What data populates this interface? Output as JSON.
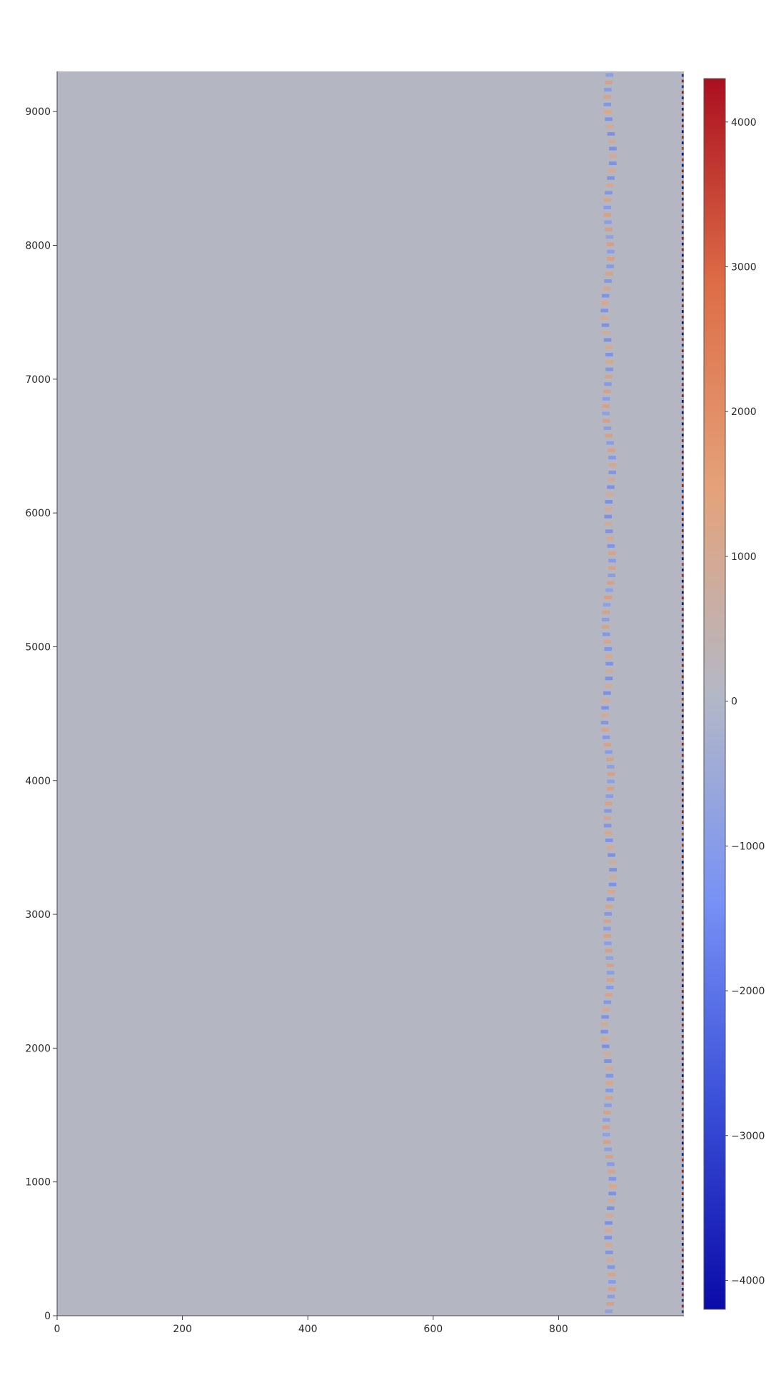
{
  "chart_data": {
    "type": "heatmap",
    "title": "",
    "xlabel": "",
    "ylabel": "",
    "xlim": [
      0,
      1000
    ],
    "ylim": [
      0,
      9300
    ],
    "x_ticks": [
      0,
      200,
      400,
      600,
      800
    ],
    "x_tick_labels": [
      "0",
      "200",
      "400",
      "600",
      "800"
    ],
    "y_ticks": [
      0,
      1000,
      2000,
      3000,
      4000,
      5000,
      6000,
      7000,
      8000,
      9000
    ],
    "y_tick_labels": [
      "0",
      "1000",
      "2000",
      "3000",
      "4000",
      "5000",
      "6000",
      "7000",
      "8000",
      "9000"
    ],
    "colorscale": "coolwarm (blue-gray-red)",
    "colorscale_colors": [
      "#0a0aa8",
      "#3a4fd8",
      "#7892f5",
      "#b4b8c6",
      "#e4a27a",
      "#dd6d47",
      "#ab0f20"
    ],
    "background_color": "#b4b6c2",
    "colorbar": {
      "range": [
        -4200,
        4300
      ],
      "ticks": [
        -4000,
        -3000,
        -2000,
        -1000,
        0,
        1000,
        2000,
        3000,
        4000
      ],
      "tick_labels": [
        "−4000",
        "−3000",
        "−2000",
        "−1000",
        "0",
        "1000",
        "2000",
        "3000",
        "4000"
      ],
      "placement": "right"
    },
    "features": [
      {
        "name": "oscillating band",
        "x_center": 880,
        "x_width": 12,
        "amplitude_range": [
          -2000,
          2000
        ],
        "pattern": "alternating blue/orange stripes along y"
      },
      {
        "name": "right edge band",
        "x_center": 998,
        "x_width": 3,
        "amplitude_range": [
          -4000,
          4300
        ],
        "pattern": "alternating saturated red/blue stripes along y"
      }
    ]
  }
}
